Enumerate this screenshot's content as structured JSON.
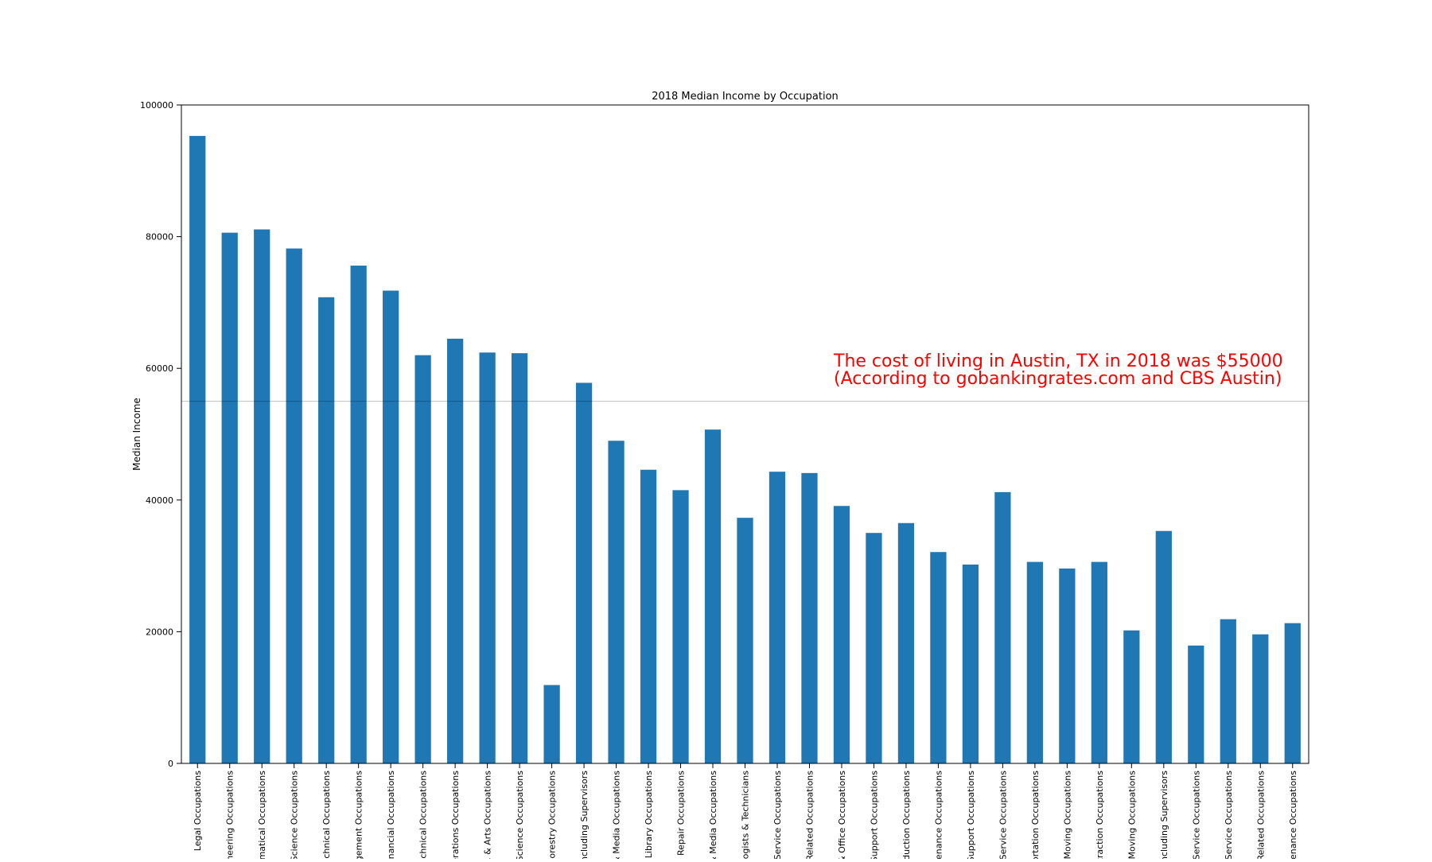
{
  "chart_data": {
    "type": "bar",
    "title": "2018 Median Income by Occupation",
    "xlabel": "",
    "ylabel": "Median Income",
    "ylim": [
      0,
      100000
    ],
    "yticks": [
      0,
      20000,
      40000,
      60000,
      80000,
      100000
    ],
    "grid": false,
    "legend": "none",
    "bar_color": "#1f77b4",
    "categories": [
      "Legal Occupations",
      "Engineering Occupations",
      "Mathematical Occupations",
      "g, & Science Occupations",
      "er Technical Occupations",
      "Management Occupations",
      ", & Financial Occupations",
      "& Technical Occupations",
      "l Operations Occupations",
      "ence, & Arts Occupations",
      "ocial Science Occupations",
      ", & Forestry Occupations",
      "ers Including Supervisors",
      "rts, & Media Occupations",
      "n, & Library Occupations",
      "ce, & Repair Occupations",
      "rts, & Media Occupations",
      "chnologists & Technicians",
      "ocial Service Occupations",
      "es & Related Occupations",
      "ales & Office Occupations",
      "tive Support Occupations",
      "Production Occupations",
      "Maintenance Occupations",
      "care Support Occupations",
      "ctive Service Occupations",
      "ansportation Occupations",
      "erial Moving Occupations",
      "& Extraction Occupations",
      "erial Moving Occupations",
      "ers Including Supervisors",
      "re & Service Occupations",
      "Service Occupations",
      "ving Related Occupations",
      "Maintenance Occupations"
    ],
    "values": [
      95300,
      80600,
      81100,
      78200,
      70800,
      75600,
      71800,
      62000,
      64500,
      62400,
      62300,
      11900,
      57800,
      49000,
      44600,
      41500,
      50700,
      37300,
      44300,
      44100,
      39100,
      35000,
      36500,
      32100,
      30200,
      41200,
      30600,
      29600,
      30600,
      20200,
      35300,
      17900,
      21900,
      19600,
      21300
    ],
    "reference_line": {
      "value": 55000,
      "color": "#000000"
    },
    "annotation": {
      "lines": [
        "The cost of living in Austin, TX in 2018 was $55000",
        "(According to gobankingrates.com and CBS Austin)"
      ],
      "color": "#ff0000"
    }
  }
}
